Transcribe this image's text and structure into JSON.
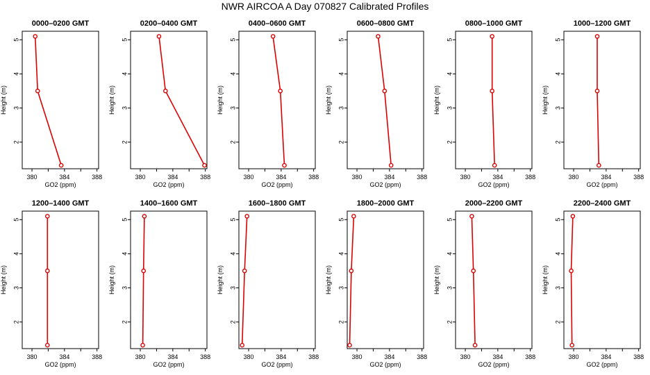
{
  "figure": {
    "title": "NWR AIRCOA A  Day 070827  Calibrated Profiles"
  },
  "colors": {
    "series": "#dd0000",
    "axis": "#000000"
  },
  "chart_data": [
    {
      "type": "line",
      "title": "0000–0200 GMT",
      "xlabel": "GO2 (ppm)",
      "ylabel": "Height (m)",
      "x_ticks": [
        "380",
        "384",
        "388"
      ],
      "y_ticks": [
        "2",
        "3",
        "4",
        "5"
      ],
      "xlim": [
        378.8,
        388.2
      ],
      "ylim": [
        1.22,
        5.25
      ],
      "points": [
        {
          "x": 380.4,
          "y": 5.1
        },
        {
          "x": 380.7,
          "y": 3.5
        },
        {
          "x": 383.6,
          "y": 1.32
        }
      ]
    },
    {
      "type": "line",
      "title": "0200–0400 GMT",
      "xlabel": "GO2 (ppm)",
      "ylabel": "Height (m)",
      "x_ticks": [
        "380",
        "384",
        "388"
      ],
      "y_ticks": [
        "2",
        "3",
        "4",
        "5"
      ],
      "xlim": [
        378.8,
        388.2
      ],
      "ylim": [
        1.22,
        5.25
      ],
      "points": [
        {
          "x": 382.3,
          "y": 5.1
        },
        {
          "x": 383.1,
          "y": 3.5
        },
        {
          "x": 387.9,
          "y": 1.32
        }
      ]
    },
    {
      "type": "line",
      "title": "0400–0600 GMT",
      "xlabel": "GO2 (ppm)",
      "ylabel": "Height (m)",
      "x_ticks": [
        "380",
        "384",
        "388"
      ],
      "y_ticks": [
        "2",
        "3",
        "4",
        "5"
      ],
      "xlim": [
        378.8,
        388.2
      ],
      "ylim": [
        1.22,
        5.25
      ],
      "points": [
        {
          "x": 383.0,
          "y": 5.1
        },
        {
          "x": 383.9,
          "y": 3.5
        },
        {
          "x": 384.4,
          "y": 1.32
        }
      ]
    },
    {
      "type": "line",
      "title": "0600–0800 GMT",
      "xlabel": "GO2 (ppm)",
      "ylabel": "Height (m)",
      "x_ticks": [
        "380",
        "384",
        "388"
      ],
      "y_ticks": [
        "2",
        "3",
        "4",
        "5"
      ],
      "xlim": [
        378.8,
        388.2
      ],
      "ylim": [
        1.22,
        5.25
      ],
      "points": [
        {
          "x": 382.6,
          "y": 5.1
        },
        {
          "x": 383.4,
          "y": 3.5
        },
        {
          "x": 384.2,
          "y": 1.32
        }
      ]
    },
    {
      "type": "line",
      "title": "0800–1000 GMT",
      "xlabel": "GO2 (ppm)",
      "ylabel": "Height (m)",
      "x_ticks": [
        "380",
        "384",
        "388"
      ],
      "y_ticks": [
        "2",
        "3",
        "4",
        "5"
      ],
      "xlim": [
        378.8,
        388.2
      ],
      "ylim": [
        1.22,
        5.25
      ],
      "points": [
        {
          "x": 383.3,
          "y": 5.1
        },
        {
          "x": 383.3,
          "y": 3.5
        },
        {
          "x": 383.6,
          "y": 1.32
        }
      ]
    },
    {
      "type": "line",
      "title": "1000–1200 GMT",
      "xlabel": "GO2 (ppm)",
      "ylabel": "Height (m)",
      "x_ticks": [
        "380",
        "384",
        "388"
      ],
      "y_ticks": [
        "2",
        "3",
        "4",
        "5"
      ],
      "xlim": [
        378.8,
        388.2
      ],
      "ylim": [
        1.22,
        5.25
      ],
      "points": [
        {
          "x": 382.9,
          "y": 5.1
        },
        {
          "x": 382.9,
          "y": 3.5
        },
        {
          "x": 383.1,
          "y": 1.32
        }
      ]
    },
    {
      "type": "line",
      "title": "1200–1400 GMT",
      "xlabel": "GO2 (ppm)",
      "ylabel": "Height (m)",
      "x_ticks": [
        "380",
        "384",
        "388"
      ],
      "y_ticks": [
        "2",
        "3",
        "4",
        "5"
      ],
      "xlim": [
        378.8,
        388.2
      ],
      "ylim": [
        1.22,
        5.25
      ],
      "points": [
        {
          "x": 381.9,
          "y": 5.1
        },
        {
          "x": 381.9,
          "y": 3.5
        },
        {
          "x": 381.9,
          "y": 1.32
        }
      ]
    },
    {
      "type": "line",
      "title": "1400–1600 GMT",
      "xlabel": "GO2 (ppm)",
      "ylabel": "Height (m)",
      "x_ticks": [
        "380",
        "384",
        "388"
      ],
      "y_ticks": [
        "2",
        "3",
        "4",
        "5"
      ],
      "xlim": [
        378.8,
        388.2
      ],
      "ylim": [
        1.22,
        5.25
      ],
      "points": [
        {
          "x": 380.5,
          "y": 5.1
        },
        {
          "x": 380.4,
          "y": 3.5
        },
        {
          "x": 380.3,
          "y": 1.32
        }
      ]
    },
    {
      "type": "line",
      "title": "1600–1800 GMT",
      "xlabel": "GO2 (ppm)",
      "ylabel": "Height (m)",
      "x_ticks": [
        "380",
        "384",
        "388"
      ],
      "y_ticks": [
        "2",
        "3",
        "4",
        "5"
      ],
      "xlim": [
        378.8,
        388.2
      ],
      "ylim": [
        1.22,
        5.25
      ],
      "points": [
        {
          "x": 379.8,
          "y": 5.1
        },
        {
          "x": 379.5,
          "y": 3.5
        },
        {
          "x": 379.2,
          "y": 1.32
        }
      ]
    },
    {
      "type": "line",
      "title": "1800–2000 GMT",
      "xlabel": "GO2 (ppm)",
      "ylabel": "Height (m)",
      "x_ticks": [
        "380",
        "384",
        "388"
      ],
      "y_ticks": [
        "2",
        "3",
        "4",
        "5"
      ],
      "xlim": [
        378.8,
        388.2
      ],
      "ylim": [
        1.22,
        5.25
      ],
      "points": [
        {
          "x": 379.6,
          "y": 5.1
        },
        {
          "x": 379.3,
          "y": 3.5
        },
        {
          "x": 379.1,
          "y": 1.32
        }
      ]
    },
    {
      "type": "line",
      "title": "2000–2200 GMT",
      "xlabel": "GO2 (ppm)",
      "ylabel": "Height (m)",
      "x_ticks": [
        "380",
        "384",
        "388"
      ],
      "y_ticks": [
        "2",
        "3",
        "4",
        "5"
      ],
      "xlim": [
        378.8,
        388.2
      ],
      "ylim": [
        1.22,
        5.25
      ],
      "points": [
        {
          "x": 380.8,
          "y": 5.1
        },
        {
          "x": 381.0,
          "y": 3.5
        },
        {
          "x": 381.2,
          "y": 1.32
        }
      ]
    },
    {
      "type": "line",
      "title": "2200–2400 GMT",
      "xlabel": "GO2 (ppm)",
      "ylabel": "Height (m)",
      "x_ticks": [
        "380",
        "384",
        "388"
      ],
      "y_ticks": [
        "2",
        "3",
        "4",
        "5"
      ],
      "xlim": [
        378.8,
        388.2
      ],
      "ylim": [
        1.22,
        5.25
      ],
      "points": [
        {
          "x": 379.9,
          "y": 5.1
        },
        {
          "x": 379.7,
          "y": 3.5
        },
        {
          "x": 379.8,
          "y": 1.32
        }
      ]
    }
  ]
}
